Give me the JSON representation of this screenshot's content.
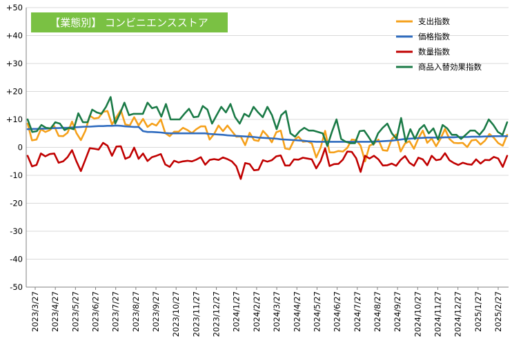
{
  "chart_data": {
    "type": "line",
    "title": "【業態別】 コンビニエンスストア",
    "ylim": [
      -50,
      50
    ],
    "yticks": [
      "-50",
      "-40",
      "-30",
      "-20",
      "-10",
      "0",
      "+10",
      "+20",
      "+30",
      "+40",
      "+50"
    ],
    "yvalues": [
      -50,
      -40,
      -30,
      -20,
      -10,
      0,
      10,
      20,
      30,
      40,
      50
    ],
    "xticks": [
      "2023/3/27",
      "2023/4/27",
      "2023/5/27",
      "2023/6/27",
      "2023/7/27",
      "2023/8/27",
      "2023/9/27",
      "2023/10/27",
      "2023/11/27",
      "2023/12/27",
      "2024/1/27",
      "2024/2/27",
      "2024/3/27",
      "2024/4/27",
      "2024/5/27",
      "2024/6/27",
      "2024/7/27",
      "2024/8/27",
      "2024/9/27",
      "2024/10/27",
      "2024/11/27",
      "2024/12/27",
      "2025/1/27",
      "2025/2/27"
    ],
    "legend_position": "top-right",
    "grid": true,
    "series": [
      {
        "name": "支出指数",
        "color": "#f5a01a",
        "values": [
          8.5,
          2.5,
          2.8,
          6.5,
          5.5,
          6.2,
          7.6,
          4.1,
          4.0,
          5.2,
          9.2,
          5.1,
          2.6,
          5.9,
          11.3,
          10.3,
          10.6,
          12.7,
          13.0,
          8.2,
          10.8,
          13.3,
          8.2,
          7.8,
          10.8,
          7.8,
          10.2,
          7.3,
          8.5,
          7.8,
          10.0,
          5.1,
          4.0,
          5.6,
          5.6,
          7.0,
          6.2,
          5.1,
          6.5,
          7.5,
          7.5,
          2.8,
          4.8,
          7.8,
          5.8,
          7.8,
          5.8,
          3.8,
          3.9,
          0.8,
          5.2,
          2.6,
          2.3,
          5.9,
          4.2,
          1.8,
          5.4,
          6.0,
          -0.4,
          -0.7,
          2.6,
          3.8,
          2.0,
          2.2,
          1.4,
          -3.6,
          -0.1,
          5.9,
          -1.8,
          -1.8,
          -1.3,
          -1.5,
          -0.2,
          2.8,
          2.6,
          0.6,
          -5.0,
          0.6,
          1.3,
          2.8,
          -1.0,
          -1.2,
          2.9,
          4.6,
          -1.5,
          1.4,
          2.2,
          -0.5,
          3.2,
          6.0,
          1.6,
          3.2,
          0.4,
          3.1,
          6.6,
          3.0,
          1.6,
          1.5,
          1.6,
          0.1,
          2.5,
          2.7,
          1.0,
          2.4,
          4.8,
          3.4,
          1.5,
          0.6,
          4.5
        ]
      },
      {
        "name": "価格指数",
        "color": "#2e6bbf",
        "values": [
          6.5,
          6.6,
          6.6,
          6.7,
          6.7,
          6.8,
          6.9,
          6.9,
          7.0,
          7.0,
          7.1,
          7.2,
          7.3,
          7.4,
          7.4,
          7.5,
          7.6,
          7.6,
          7.7,
          7.7,
          7.8,
          7.7,
          7.5,
          7.4,
          7.3,
          7.3,
          5.8,
          5.5,
          5.5,
          5.4,
          5.3,
          5.1,
          5.0,
          5.0,
          5.0,
          5.0,
          5.0,
          5.0,
          5.0,
          5.0,
          5.0,
          4.8,
          4.7,
          4.6,
          4.5,
          4.3,
          4.2,
          4.1,
          4.0,
          3.9,
          3.8,
          3.7,
          3.5,
          3.4,
          3.3,
          3.2,
          3.1,
          2.9,
          2.8,
          2.7,
          2.6,
          2.5,
          2.4,
          2.2,
          2.1,
          2.0,
          2.0,
          2.0,
          2.0,
          2.0,
          2.0,
          2.0,
          2.0,
          2.0,
          2.0,
          2.0,
          2.0,
          2.0,
          2.1,
          2.1,
          2.2,
          2.3,
          2.4,
          2.6,
          2.8,
          3.0,
          3.1,
          3.2,
          3.3,
          3.4,
          3.5,
          3.5,
          3.5,
          3.5,
          3.6,
          3.6,
          3.6,
          3.7,
          3.7,
          3.7,
          3.8,
          3.8,
          3.8,
          3.9,
          3.9,
          4.0,
          4.0,
          4.0,
          4.0
        ]
      },
      {
        "name": "数量指数",
        "color": "#c00000",
        "values": [
          -3.0,
          -6.8,
          -6.3,
          -2.2,
          -3.2,
          -2.4,
          -2.2,
          -5.5,
          -5.0,
          -3.5,
          -1.0,
          -5.0,
          -8.5,
          -4.4,
          -0.3,
          -0.5,
          -0.8,
          1.6,
          0.6,
          -3.0,
          0.3,
          0.4,
          -4.1,
          -3.4,
          -0.1,
          -4.1,
          -2.2,
          -4.9,
          -3.5,
          -3.0,
          -2.4,
          -6.1,
          -7.0,
          -4.8,
          -5.4,
          -5.0,
          -4.8,
          -5.0,
          -4.4,
          -3.5,
          -6.2,
          -4.5,
          -4.2,
          -4.5,
          -3.6,
          -4.2,
          -5.0,
          -6.8,
          -11.3,
          -5.6,
          -6.0,
          -8.2,
          -8.0,
          -4.6,
          -5.1,
          -4.6,
          -3.2,
          -2.9,
          -6.5,
          -6.5,
          -4.3,
          -4.4,
          -3.7,
          -4.0,
          -4.3,
          -7.5,
          -4.9,
          -0.3,
          -6.7,
          -6.0,
          -5.9,
          -4.4,
          -1.5,
          -1.6,
          -3.9,
          -8.8,
          -3.0,
          -4.0,
          -3.0,
          -4.3,
          -6.5,
          -6.4,
          -5.8,
          -6.6,
          -4.5,
          -3.1,
          -5.5,
          -6.6,
          -3.7,
          -4.3,
          -6.4,
          -3.0,
          -4.6,
          -4.3,
          -2.1,
          -4.6,
          -5.6,
          -6.3,
          -5.5,
          -6.0,
          -6.2,
          -4.3,
          -5.8,
          -4.5,
          -4.6,
          -3.4,
          -4.0,
          -7.0,
          -3.0
        ]
      },
      {
        "name": "商品入替効果指数",
        "color": "#1a7a46",
        "values": [
          10.0,
          5.5,
          5.8,
          8.0,
          7.0,
          6.8,
          9.0,
          8.5,
          6.2,
          7.0,
          6.5,
          12.2,
          9.0,
          9.0,
          13.5,
          12.5,
          12.0,
          14.5,
          18.0,
          8.5,
          12.0,
          16.0,
          11.5,
          12.0,
          12.0,
          12.0,
          16.0,
          14.0,
          14.5,
          11.0,
          15.5,
          10.0,
          10.0,
          10.0,
          12.0,
          13.8,
          10.8,
          11.0,
          14.8,
          13.5,
          8.5,
          11.5,
          14.5,
          12.5,
          15.5,
          10.8,
          8.5,
          12.0,
          11.0,
          14.5,
          12.5,
          10.8,
          14.5,
          11.5,
          6.5,
          11.5,
          13.0,
          5.0,
          3.8,
          5.8,
          7.0,
          6.0,
          6.0,
          5.5,
          5.0,
          0.5,
          5.6,
          10.0,
          3.0,
          2.0,
          1.5,
          1.5,
          5.8,
          6.0,
          3.6,
          1.0,
          5.0,
          7.0,
          8.5,
          5.0,
          3.0,
          10.5,
          2.0,
          6.5,
          3.0,
          6.5,
          8.0,
          5.0,
          6.8,
          2.8,
          8.0,
          6.8,
          4.5,
          4.5,
          3.0,
          4.5,
          6.0,
          6.0,
          4.5,
          6.5,
          10.0,
          8.0,
          5.5,
          4.5,
          9.0
        ]
      }
    ]
  }
}
